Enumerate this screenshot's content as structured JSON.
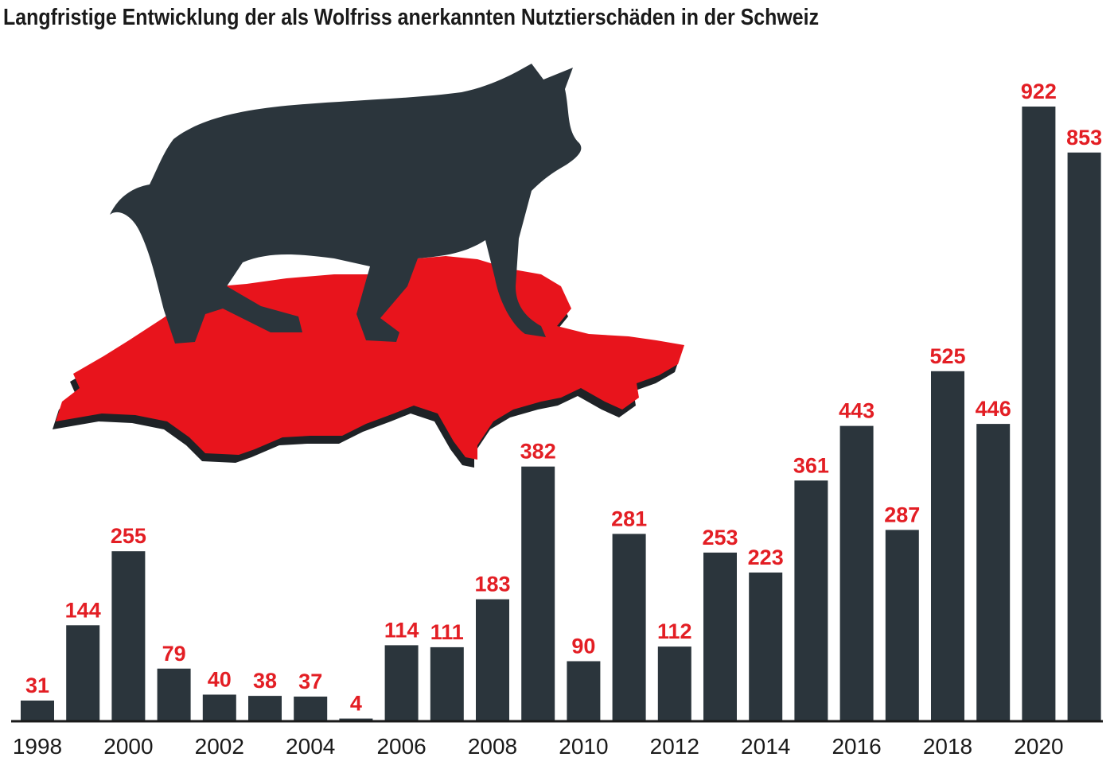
{
  "colors": {
    "bar": "#2b353c",
    "label": "#e31e24",
    "map": "#e8141c",
    "map_shadow": "#1e2226",
    "wolf": "#2b353c",
    "axis": "#1a1a1a"
  },
  "illustration": {
    "icons": [
      "wolf-silhouette-icon",
      "switzerland-map-icon"
    ]
  },
  "chart_data": {
    "type": "bar",
    "title": "Langfristige Entwicklung der als Wolfriss anerkannten Nutztierschäden in der Schweiz",
    "xlabel": "",
    "ylabel": "",
    "categories": [
      "1998",
      "1999",
      "2000",
      "2001",
      "2002",
      "2003",
      "2004",
      "2005",
      "2006",
      "2007",
      "2008",
      "2009",
      "2010",
      "2011",
      "2012",
      "2013",
      "2014",
      "2015",
      "2016",
      "2017",
      "2018",
      "2019",
      "2020",
      "2021"
    ],
    "values": [
      31,
      144,
      255,
      79,
      40,
      38,
      37,
      4,
      114,
      111,
      183,
      382,
      90,
      281,
      112,
      253,
      223,
      361,
      443,
      287,
      525,
      446,
      922,
      853
    ],
    "tick_labels": [
      "1998",
      "2000",
      "2002",
      "2004",
      "2006",
      "2008",
      "2010",
      "2012",
      "2014",
      "2016",
      "2018",
      "2020"
    ],
    "ylim": [
      0,
      922
    ],
    "grid": false,
    "legend": "none",
    "data_labels": true
  }
}
